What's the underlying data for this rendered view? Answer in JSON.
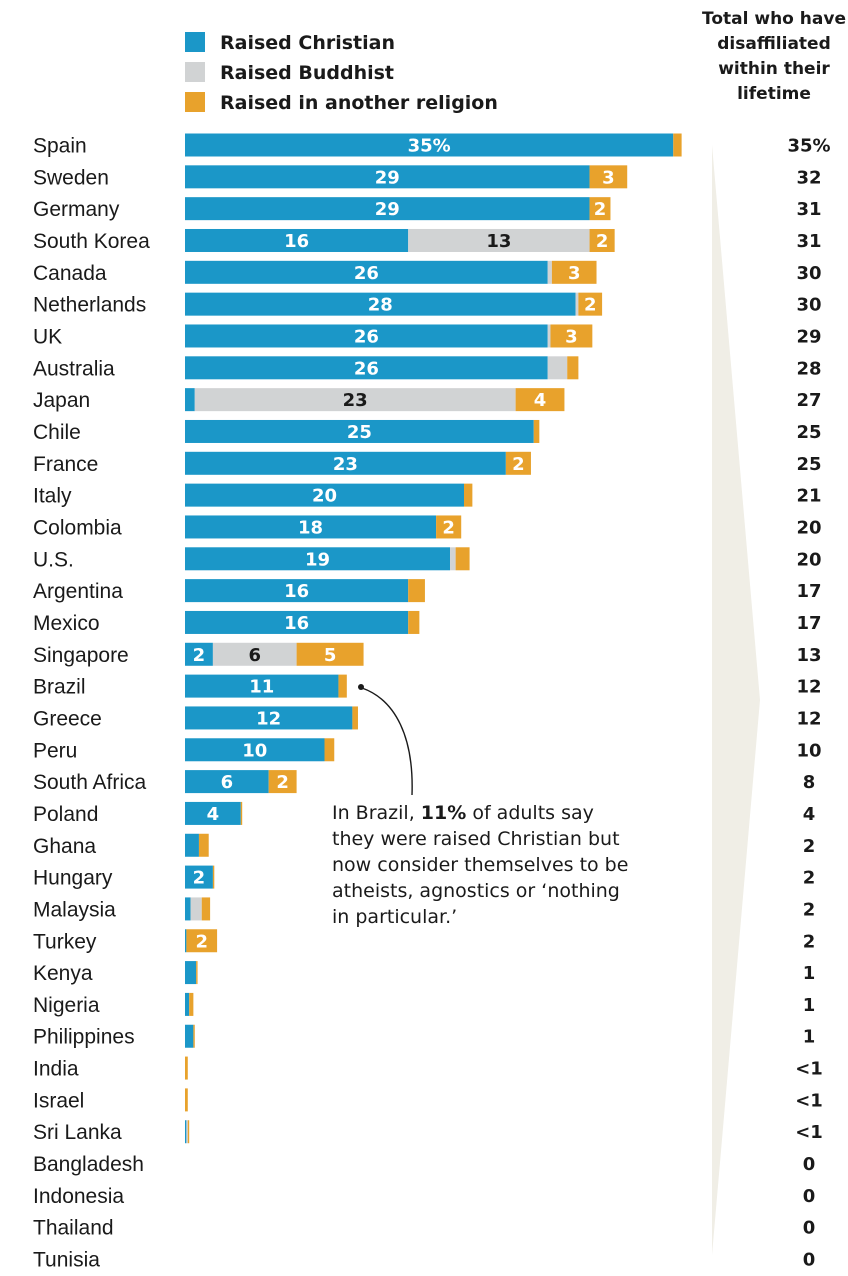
{
  "colors": {
    "christian": "#1b97c8",
    "buddhist": "#d1d3d4",
    "other": "#e8a22c",
    "wedge": "#f0eee6"
  },
  "legend": [
    {
      "key": "christian",
      "label": "Raised Christian"
    },
    {
      "key": "buddhist",
      "label": "Raised Buddhist"
    },
    {
      "key": "other",
      "label": "Raised in another religion"
    }
  ],
  "total_header": [
    "Total who have",
    "disaffiliated",
    "within their",
    "lifetime"
  ],
  "annotation": {
    "prefix": "In Brazil, ",
    "highlight": "11%",
    "suffix": " of adults say they were raised Christian but now consider themselves to be atheists, agnostics or ‘nothing in particular.’"
  },
  "chart_data": {
    "type": "bar",
    "orientation": "horizontal",
    "stacked": true,
    "categories": [
      "Spain",
      "Sweden",
      "Germany",
      "South Korea",
      "Canada",
      "Netherlands",
      "UK",
      "Australia",
      "Japan",
      "Chile",
      "France",
      "Italy",
      "Colombia",
      "U.S.",
      "Argentina",
      "Mexico",
      "Singapore",
      "Brazil",
      "Greece",
      "Peru",
      "South Africa",
      "Poland",
      "Ghana",
      "Hungary",
      "Malaysia",
      "Turkey",
      "Kenya",
      "Nigeria",
      "Philippines",
      "India",
      "Israel",
      "Sri Lanka",
      "Bangladesh",
      "Indonesia",
      "Thailand",
      "Tunisia"
    ],
    "series": [
      {
        "name": "Raised Christian",
        "key": "christian",
        "values": [
          35,
          29,
          29,
          16,
          26,
          28,
          26,
          26,
          0.7,
          25,
          23,
          20,
          18,
          19,
          16,
          16,
          2,
          11,
          12,
          10,
          6,
          4,
          1,
          2,
          0.4,
          0.1,
          0.8,
          0.3,
          0.6,
          0,
          0,
          0.1,
          0,
          0,
          0,
          0
        ],
        "labels": [
          "35%",
          "29",
          "29",
          "16",
          "26",
          "28",
          "26",
          "26",
          "",
          "25",
          "23",
          "20",
          "18",
          "19",
          "16",
          "16",
          "2",
          "11",
          "12",
          "10",
          "6",
          "4",
          "",
          "2",
          "",
          "",
          "",
          "",
          "",
          "",
          "",
          "",
          "",
          "",
          "",
          ""
        ]
      },
      {
        "name": "Raised Buddhist",
        "key": "buddhist",
        "values": [
          0,
          0,
          0,
          13,
          0.3,
          0.2,
          0.2,
          1.4,
          23,
          0,
          0,
          0,
          0,
          0.4,
          0,
          0,
          6,
          0,
          0,
          0,
          0,
          0,
          0,
          0,
          0.8,
          0,
          0,
          0,
          0,
          0,
          0,
          0.1,
          0,
          0,
          0,
          0
        ],
        "labels": [
          "",
          "",
          "",
          "13",
          "",
          "",
          "",
          "",
          "23",
          "",
          "",
          "",
          "",
          "",
          "",
          "",
          "6",
          "",
          "",
          "",
          "",
          "",
          "",
          "",
          "",
          "",
          "",
          "",
          "",
          "",
          "",
          "",
          "",
          "",
          "",
          ""
        ]
      },
      {
        "name": "Raised in another religion",
        "key": "other",
        "values": [
          0.6,
          2.7,
          1.5,
          1.8,
          3.2,
          1.7,
          3,
          0.8,
          3.5,
          0.4,
          1.8,
          0.6,
          1.8,
          1,
          1.2,
          0.8,
          4.8,
          0.6,
          0.4,
          0.7,
          2,
          0.1,
          0.7,
          0.1,
          0.6,
          2.2,
          0.1,
          0.3,
          0.1,
          0.2,
          0.2,
          0.1,
          0,
          0,
          0,
          0
        ],
        "labels": [
          "",
          "3",
          "2",
          "2",
          "3",
          "2",
          "3",
          "",
          "4",
          "",
          "2",
          "",
          "2",
          "",
          "",
          "",
          "5",
          "",
          "",
          "",
          "2",
          "",
          "",
          "",
          "",
          "2",
          "",
          "",
          "",
          "",
          "",
          "",
          "",
          "",
          "",
          ""
        ]
      }
    ],
    "totals": [
      "35%",
      "32",
      "31",
      "31",
      "30",
      "30",
      "29",
      "28",
      "27",
      "25",
      "25",
      "21",
      "20",
      "20",
      "17",
      "17",
      "13",
      "12",
      "12",
      "10",
      "8",
      "4",
      "2",
      "2",
      "2",
      "2",
      "1",
      "1",
      "1",
      "<1",
      "<1",
      "<1",
      "0",
      "0",
      "0",
      "0"
    ]
  }
}
